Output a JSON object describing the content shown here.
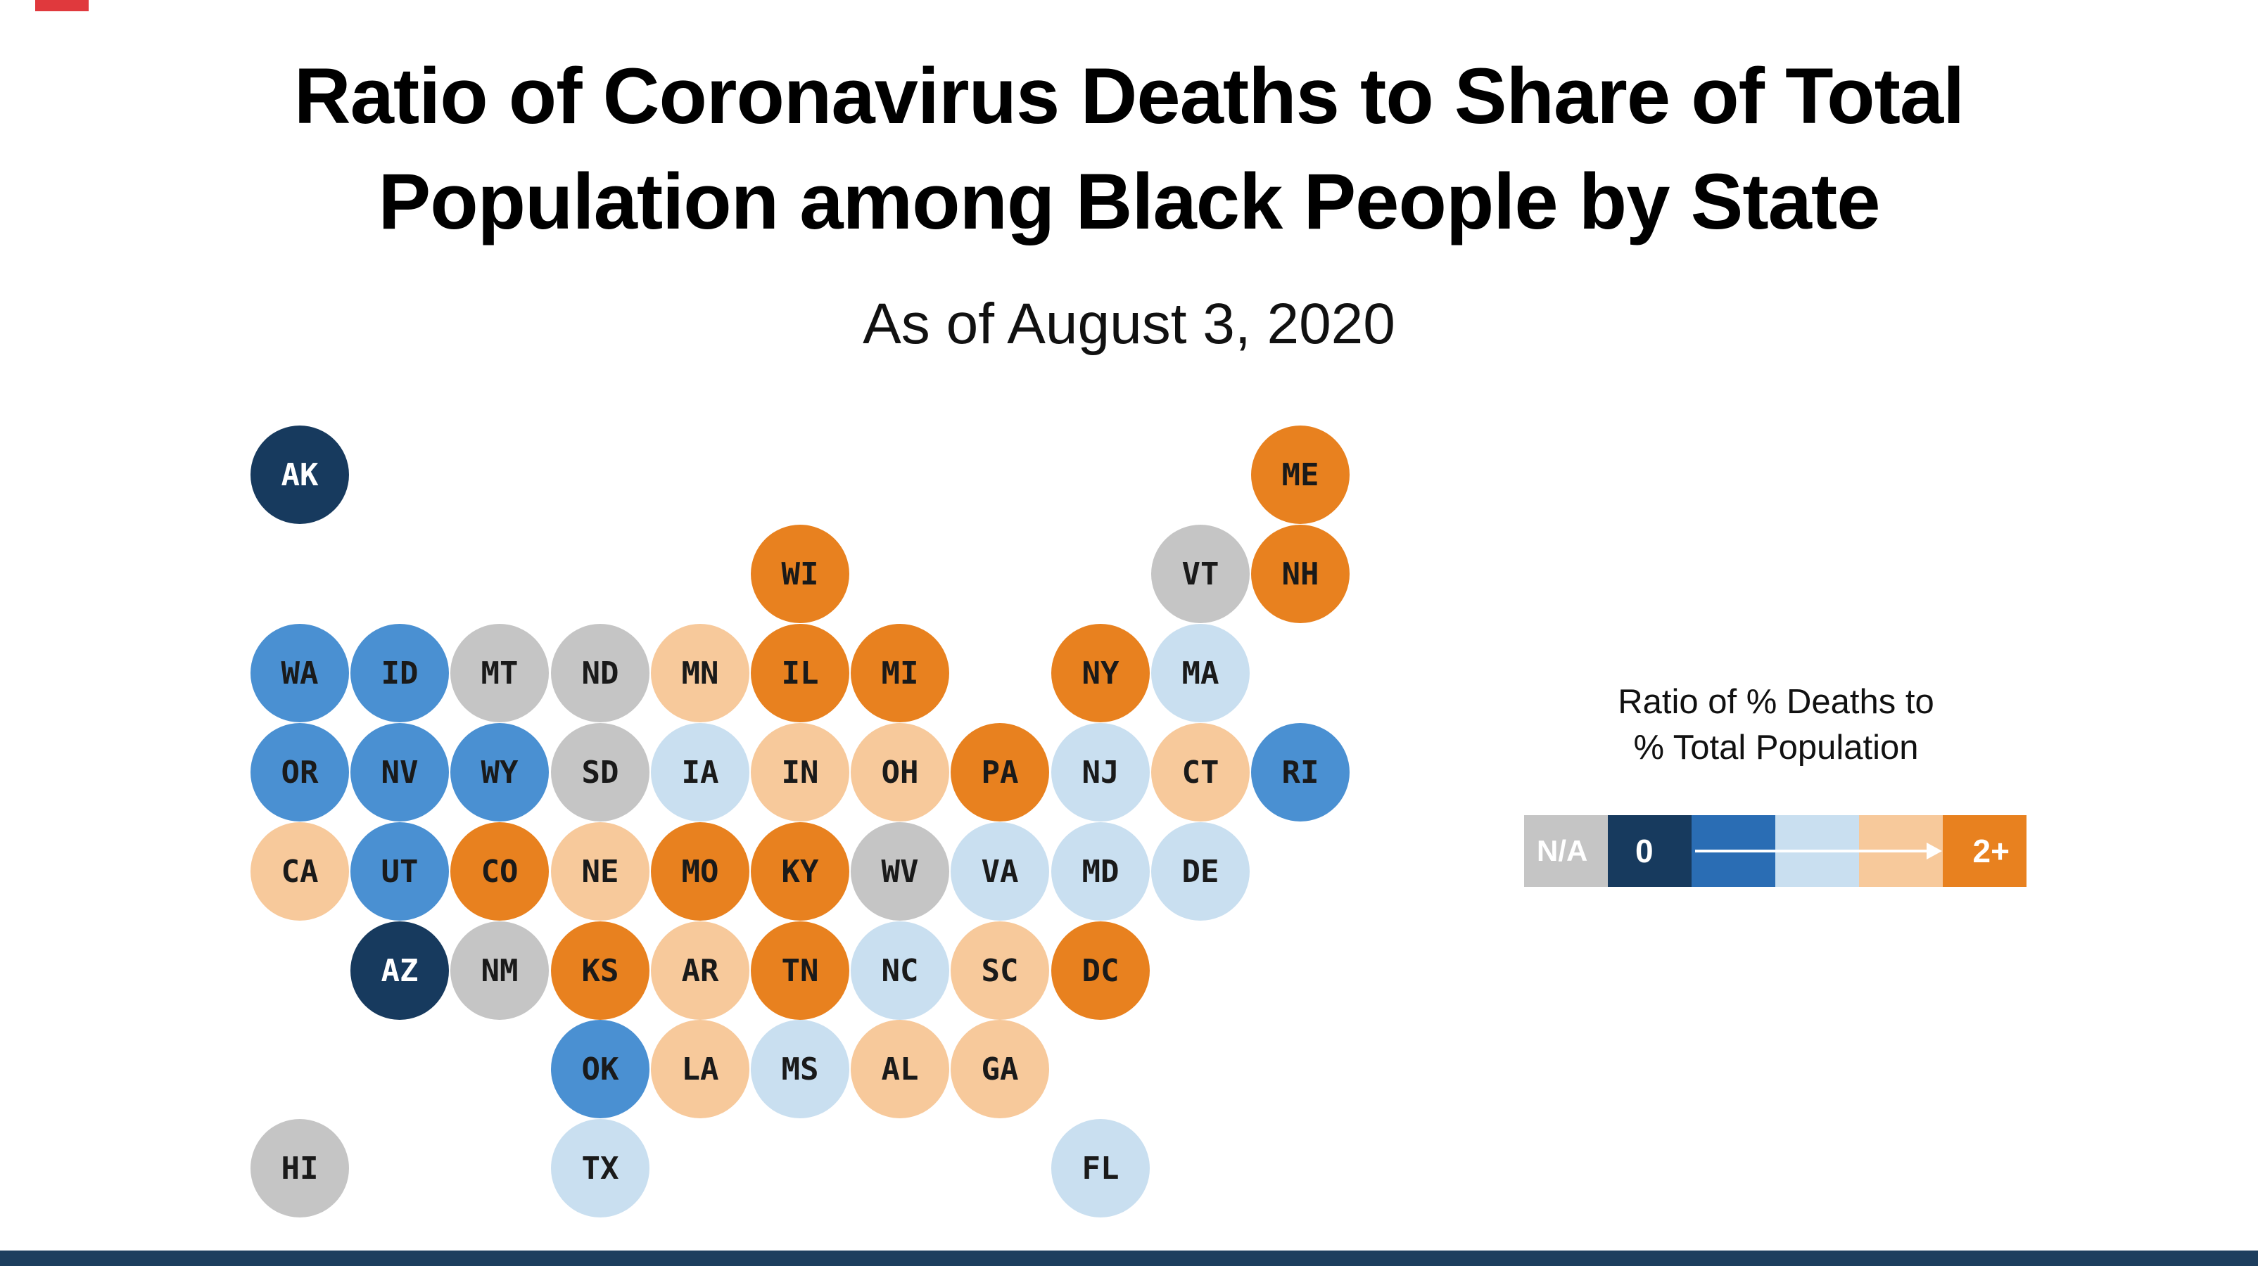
{
  "header": {
    "title_line1": "Ratio of Coronavirus Deaths to Share of Total",
    "title_line2": "Population among Black People by State",
    "subtitle": "As of August 3, 2020"
  },
  "decor": {
    "top_accent_color": "#e0393d",
    "footer_bar_color": "#1d3e5e",
    "background": "#ffffff"
  },
  "legend": {
    "title_line1": "Ratio of % Deaths to",
    "title_line2": "% Total Population",
    "na_label": "N/A",
    "zero_label": "0",
    "max_label": "2+",
    "segment_colors": [
      "#c5c5c5",
      "#173a5e",
      "#2a6db4",
      "#c9dff0",
      "#f7c99b",
      "#e8811f"
    ]
  },
  "palette": {
    "na": "#c5c5c5",
    "bin0": "#173a5e",
    "bin1": "#4a90d2",
    "bin2": "#c9dff0",
    "bin3": "#f7c99b",
    "bin4": "#e8811f",
    "text_dark": "#1a1a1a",
    "text_light": "#ffffff"
  },
  "chart_data": {
    "type": "tile-grid-map",
    "title": "Ratio of Coronavirus Deaths to Share of Total Population among Black People by State",
    "subtitle": "As of August 3, 2020",
    "legend_title": "Ratio of % Deaths to % Total Population",
    "scale_labels": {
      "na": "N/A",
      "min": "0",
      "max": "2+"
    },
    "bins": {
      "na": "no data (gray)",
      "bin0": "ratio near 0 (darkest navy)",
      "bin1": "ratio well below 1 (blue)",
      "bin2": "ratio somewhat below 1 (light blue)",
      "bin3": "ratio above 1 (light orange)",
      "bin4": "ratio 2 or more (orange)"
    },
    "states": [
      {
        "abbr": "AK",
        "row": 0,
        "col": 0,
        "bin": "bin0"
      },
      {
        "abbr": "ME",
        "row": 0,
        "col": 10,
        "bin": "bin4"
      },
      {
        "abbr": "WI",
        "row": 1,
        "col": 5,
        "bin": "bin4"
      },
      {
        "abbr": "VT",
        "row": 1,
        "col": 9,
        "bin": "na"
      },
      {
        "abbr": "NH",
        "row": 1,
        "col": 10,
        "bin": "bin4"
      },
      {
        "abbr": "WA",
        "row": 2,
        "col": 0,
        "bin": "bin1"
      },
      {
        "abbr": "ID",
        "row": 2,
        "col": 1,
        "bin": "bin1"
      },
      {
        "abbr": "MT",
        "row": 2,
        "col": 2,
        "bin": "na"
      },
      {
        "abbr": "ND",
        "row": 2,
        "col": 3,
        "bin": "na"
      },
      {
        "abbr": "MN",
        "row": 2,
        "col": 4,
        "bin": "bin3"
      },
      {
        "abbr": "IL",
        "row": 2,
        "col": 5,
        "bin": "bin4"
      },
      {
        "abbr": "MI",
        "row": 2,
        "col": 6,
        "bin": "bin4"
      },
      {
        "abbr": "NY",
        "row": 2,
        "col": 8,
        "bin": "bin4"
      },
      {
        "abbr": "MA",
        "row": 2,
        "col": 9,
        "bin": "bin2"
      },
      {
        "abbr": "OR",
        "row": 3,
        "col": 0,
        "bin": "bin1"
      },
      {
        "abbr": "NV",
        "row": 3,
        "col": 1,
        "bin": "bin1"
      },
      {
        "abbr": "WY",
        "row": 3,
        "col": 2,
        "bin": "bin1"
      },
      {
        "abbr": "SD",
        "row": 3,
        "col": 3,
        "bin": "na"
      },
      {
        "abbr": "IA",
        "row": 3,
        "col": 4,
        "bin": "bin2"
      },
      {
        "abbr": "IN",
        "row": 3,
        "col": 5,
        "bin": "bin3"
      },
      {
        "abbr": "OH",
        "row": 3,
        "col": 6,
        "bin": "bin3"
      },
      {
        "abbr": "PA",
        "row": 3,
        "col": 7,
        "bin": "bin4"
      },
      {
        "abbr": "NJ",
        "row": 3,
        "col": 8,
        "bin": "bin2"
      },
      {
        "abbr": "CT",
        "row": 3,
        "col": 9,
        "bin": "bin3"
      },
      {
        "abbr": "RI",
        "row": 3,
        "col": 10,
        "bin": "bin1"
      },
      {
        "abbr": "CA",
        "row": 4,
        "col": 0,
        "bin": "bin3"
      },
      {
        "abbr": "UT",
        "row": 4,
        "col": 1,
        "bin": "bin1"
      },
      {
        "abbr": "CO",
        "row": 4,
        "col": 2,
        "bin": "bin4"
      },
      {
        "abbr": "NE",
        "row": 4,
        "col": 3,
        "bin": "bin3"
      },
      {
        "abbr": "MO",
        "row": 4,
        "col": 4,
        "bin": "bin4"
      },
      {
        "abbr": "KY",
        "row": 4,
        "col": 5,
        "bin": "bin4"
      },
      {
        "abbr": "WV",
        "row": 4,
        "col": 6,
        "bin": "na"
      },
      {
        "abbr": "VA",
        "row": 4,
        "col": 7,
        "bin": "bin2"
      },
      {
        "abbr": "MD",
        "row": 4,
        "col": 8,
        "bin": "bin2"
      },
      {
        "abbr": "DE",
        "row": 4,
        "col": 9,
        "bin": "bin2"
      },
      {
        "abbr": "AZ",
        "row": 5,
        "col": 1,
        "bin": "bin0"
      },
      {
        "abbr": "NM",
        "row": 5,
        "col": 2,
        "bin": "na"
      },
      {
        "abbr": "KS",
        "row": 5,
        "col": 3,
        "bin": "bin4"
      },
      {
        "abbr": "AR",
        "row": 5,
        "col": 4,
        "bin": "bin3"
      },
      {
        "abbr": "TN",
        "row": 5,
        "col": 5,
        "bin": "bin4"
      },
      {
        "abbr": "NC",
        "row": 5,
        "col": 6,
        "bin": "bin2"
      },
      {
        "abbr": "SC",
        "row": 5,
        "col": 7,
        "bin": "bin3"
      },
      {
        "abbr": "DC",
        "row": 5,
        "col": 8,
        "bin": "bin4"
      },
      {
        "abbr": "OK",
        "row": 6,
        "col": 3,
        "bin": "bin1"
      },
      {
        "abbr": "LA",
        "row": 6,
        "col": 4,
        "bin": "bin3"
      },
      {
        "abbr": "MS",
        "row": 6,
        "col": 5,
        "bin": "bin2"
      },
      {
        "abbr": "AL",
        "row": 6,
        "col": 6,
        "bin": "bin3"
      },
      {
        "abbr": "GA",
        "row": 6,
        "col": 7,
        "bin": "bin3"
      },
      {
        "abbr": "HI",
        "row": 7,
        "col": 0,
        "bin": "na"
      },
      {
        "abbr": "TX",
        "row": 7,
        "col": 3,
        "bin": "bin2"
      },
      {
        "abbr": "FL",
        "row": 7,
        "col": 8,
        "bin": "bin2"
      }
    ]
  }
}
